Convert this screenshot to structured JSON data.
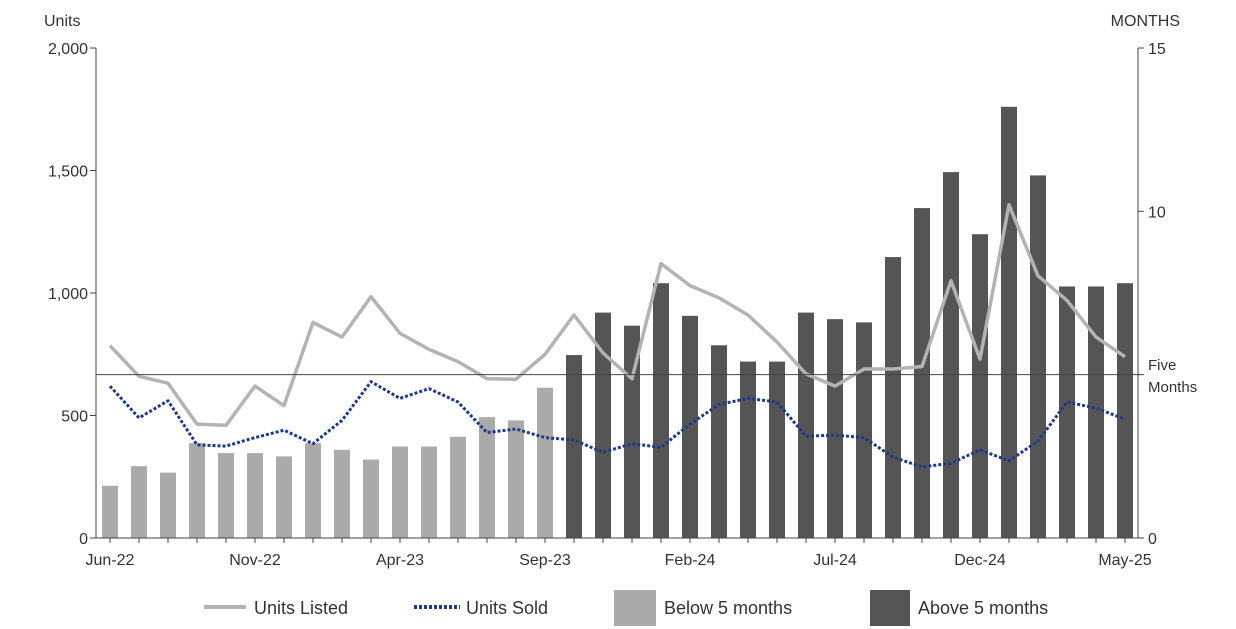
{
  "chart_data": {
    "type": "bar",
    "x": [
      "Jun-22",
      "Jul-22",
      "Aug-22",
      "Sep-22",
      "Oct-22",
      "Nov-22",
      "Dec-22",
      "Jan-23",
      "Feb-23",
      "Mar-23",
      "Apr-23",
      "May-23",
      "Jun-23",
      "Jul-23",
      "Aug-23",
      "Sep-23",
      "Oct-23",
      "Nov-23",
      "Dec-23",
      "Jan-24",
      "Feb-24",
      "Mar-24",
      "Apr-24",
      "May-24",
      "Jun-24",
      "Jul-24",
      "Aug-24",
      "Sep-24",
      "Oct-24",
      "Nov-24",
      "Dec-24",
      "Jan-25",
      "Feb-25",
      "Mar-25",
      "Apr-25",
      "May-25"
    ],
    "x_tick_labels": [
      "Jun-22",
      "Nov-22",
      "Apr-23",
      "Sep-23",
      "Feb-24",
      "Jul-24",
      "Dec-24",
      "May-25"
    ],
    "y_left": {
      "label": "Units",
      "range": [
        0,
        2000
      ],
      "ticks": [
        "0",
        "500",
        "1,000",
        "1,500",
        "2,000"
      ],
      "tick_values": [
        0,
        500,
        1000,
        1500,
        2000
      ]
    },
    "y_right": {
      "label": "MONTHS",
      "range": [
        0,
        15
      ],
      "ticks": [
        "0",
        "5",
        "10",
        "15"
      ],
      "tick_values": [
        0,
        5,
        10,
        15
      ],
      "tick_shown": [
        true,
        false,
        true,
        true
      ]
    },
    "series": [
      {
        "name": "Above 5 months",
        "kind": "bar",
        "axis": "right",
        "color": "#555555",
        "values": [
          null,
          null,
          null,
          null,
          null,
          null,
          null,
          null,
          null,
          null,
          null,
          null,
          null,
          null,
          null,
          null,
          5.6,
          6.9,
          6.5,
          7.8,
          6.8,
          5.9,
          5.4,
          5.4,
          6.9,
          6.7,
          6.6,
          8.6,
          10.1,
          11.2,
          9.3,
          13.2,
          11.1,
          7.7,
          7.7,
          7.8
        ]
      },
      {
        "name": "Below 5 months",
        "kind": "bar",
        "axis": "right",
        "color": "#aaaaaa",
        "values": [
          1.6,
          2.2,
          2.0,
          2.9,
          2.6,
          2.6,
          2.5,
          2.9,
          2.7,
          2.4,
          2.8,
          2.8,
          3.1,
          3.7,
          3.6,
          4.6,
          null,
          null,
          null,
          null,
          null,
          null,
          null,
          null,
          null,
          null,
          null,
          null,
          null,
          null,
          null,
          null,
          null,
          null,
          null,
          null
        ]
      },
      {
        "name": "Units Listed",
        "kind": "line",
        "axis": "left",
        "color": "#b3b3b3",
        "values": [
          785,
          660,
          632,
          465,
          460,
          620,
          540,
          880,
          820,
          985,
          835,
          770,
          720,
          650,
          648,
          750,
          910,
          755,
          650,
          1120,
          1030,
          980,
          910,
          800,
          670,
          620,
          690,
          690,
          700,
          1050,
          730,
          1360,
          1070,
          970,
          820,
          740
        ]
      },
      {
        "name": "Units Sold",
        "kind": "line",
        "axis": "left",
        "color": "#1f3a8a",
        "dash": true,
        "values": [
          620,
          490,
          560,
          380,
          375,
          410,
          440,
          385,
          480,
          638,
          570,
          610,
          555,
          430,
          445,
          410,
          400,
          350,
          385,
          370,
          465,
          545,
          570,
          555,
          415,
          420,
          410,
          330,
          290,
          305,
          360,
          315,
          395,
          555,
          530,
          485
        ]
      }
    ],
    "reference_line": {
      "value": 5,
      "axis": "right",
      "label_line1": "Five",
      "label_line2": "Months"
    },
    "legend": {
      "placement": "bottom"
    },
    "grid": false
  }
}
